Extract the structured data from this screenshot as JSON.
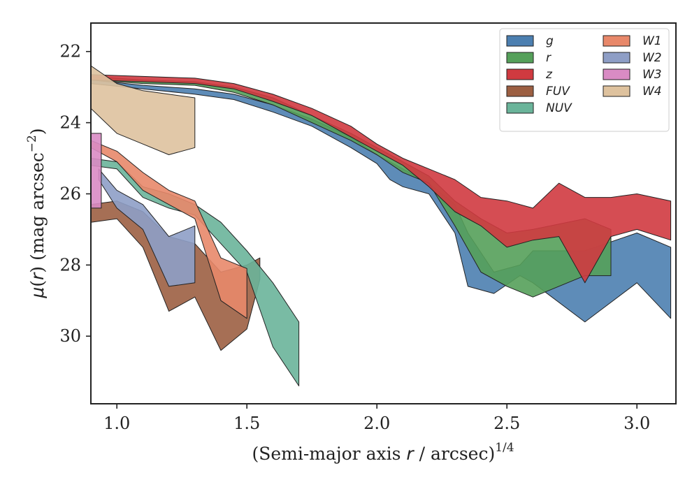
{
  "chart_data": {
    "type": "area",
    "xlabel": "(Semi-major axis r / arcsec)^1/4",
    "ylabel": "μ(r) (mag arcsec^−2)",
    "xlim": [
      0.9,
      3.15
    ],
    "ylim": [
      31.9,
      21.2
    ],
    "y_inverted": true,
    "grid": false,
    "legend_placement": "top-right",
    "xticks": [
      "1.0",
      "1.5",
      "2.0",
      "2.5",
      "3.0"
    ],
    "xtick_values": [
      1.0,
      1.5,
      2.0,
      2.5,
      3.0
    ],
    "yticks": [
      "22",
      "24",
      "26",
      "28",
      "30"
    ],
    "ytick_values": [
      22,
      24,
      26,
      28,
      30
    ],
    "series": [
      {
        "name": "g",
        "color": "#4C7FB0",
        "upper": [
          [
            0.9,
            22.8
          ],
          [
            1.1,
            22.95
          ],
          [
            1.3,
            23.05
          ],
          [
            1.45,
            23.2
          ],
          [
            1.6,
            23.5
          ],
          [
            1.75,
            23.9
          ],
          [
            1.9,
            24.4
          ],
          [
            2.0,
            24.9
          ],
          [
            2.05,
            25.1
          ],
          [
            2.1,
            25.3
          ],
          [
            2.2,
            25.7
          ],
          [
            2.3,
            26.3
          ],
          [
            2.35,
            27.1
          ],
          [
            2.45,
            28.2
          ],
          [
            2.55,
            28.0
          ],
          [
            2.6,
            27.6
          ],
          [
            2.8,
            27.6
          ],
          [
            3.0,
            27.1
          ],
          [
            3.13,
            27.5
          ]
        ],
        "lower": [
          [
            0.9,
            22.9
          ],
          [
            1.1,
            23.05
          ],
          [
            1.3,
            23.2
          ],
          [
            1.45,
            23.35
          ],
          [
            1.6,
            23.7
          ],
          [
            1.75,
            24.1
          ],
          [
            1.9,
            24.7
          ],
          [
            2.0,
            25.15
          ],
          [
            2.05,
            25.6
          ],
          [
            2.1,
            25.8
          ],
          [
            2.2,
            26.0
          ],
          [
            2.3,
            27.1
          ],
          [
            2.35,
            28.6
          ],
          [
            2.45,
            28.8
          ],
          [
            2.55,
            28.3
          ],
          [
            2.6,
            28.5
          ],
          [
            2.8,
            29.6
          ],
          [
            3.0,
            28.5
          ],
          [
            3.13,
            29.5
          ]
        ]
      },
      {
        "name": "r",
        "color": "#55A05A",
        "upper": [
          [
            0.9,
            22.7
          ],
          [
            1.1,
            22.8
          ],
          [
            1.3,
            22.85
          ],
          [
            1.45,
            23.0
          ],
          [
            1.6,
            23.3
          ],
          [
            1.75,
            23.8
          ],
          [
            1.9,
            24.3
          ],
          [
            2.0,
            24.7
          ],
          [
            2.1,
            25.1
          ],
          [
            2.2,
            25.5
          ],
          [
            2.3,
            26.2
          ],
          [
            2.4,
            26.7
          ],
          [
            2.5,
            27.1
          ],
          [
            2.6,
            27.0
          ],
          [
            2.8,
            26.7
          ],
          [
            2.9,
            27.0
          ]
        ],
        "lower": [
          [
            0.9,
            22.8
          ],
          [
            1.1,
            22.9
          ],
          [
            1.3,
            22.95
          ],
          [
            1.45,
            23.15
          ],
          [
            1.6,
            23.5
          ],
          [
            1.75,
            24.0
          ],
          [
            1.9,
            24.5
          ],
          [
            2.0,
            24.9
          ],
          [
            2.1,
            25.4
          ],
          [
            2.2,
            25.7
          ],
          [
            2.3,
            26.9
          ],
          [
            2.4,
            28.2
          ],
          [
            2.5,
            28.6
          ],
          [
            2.6,
            28.9
          ],
          [
            2.8,
            28.3
          ],
          [
            2.9,
            28.3
          ]
        ]
      },
      {
        "name": "z",
        "color": "#D03A40",
        "upper": [
          [
            0.9,
            22.65
          ],
          [
            1.1,
            22.7
          ],
          [
            1.3,
            22.75
          ],
          [
            1.45,
            22.9
          ],
          [
            1.6,
            23.2
          ],
          [
            1.75,
            23.6
          ],
          [
            1.9,
            24.1
          ],
          [
            2.0,
            24.6
          ],
          [
            2.1,
            25.0
          ],
          [
            2.2,
            25.3
          ],
          [
            2.3,
            25.6
          ],
          [
            2.4,
            26.1
          ],
          [
            2.5,
            26.2
          ],
          [
            2.6,
            26.4
          ],
          [
            2.7,
            25.7
          ],
          [
            2.8,
            26.1
          ],
          [
            2.9,
            26.1
          ],
          [
            3.0,
            26.0
          ],
          [
            3.13,
            26.2
          ]
        ],
        "lower": [
          [
            0.9,
            22.8
          ],
          [
            1.1,
            22.85
          ],
          [
            1.3,
            22.9
          ],
          [
            1.45,
            23.05
          ],
          [
            1.6,
            23.4
          ],
          [
            1.75,
            23.8
          ],
          [
            1.9,
            24.4
          ],
          [
            2.0,
            24.8
          ],
          [
            2.1,
            25.2
          ],
          [
            2.2,
            25.8
          ],
          [
            2.3,
            26.5
          ],
          [
            2.4,
            26.9
          ],
          [
            2.5,
            27.5
          ],
          [
            2.6,
            27.3
          ],
          [
            2.7,
            27.2
          ],
          [
            2.8,
            28.5
          ],
          [
            2.9,
            27.2
          ],
          [
            3.0,
            27.0
          ],
          [
            3.13,
            27.3
          ]
        ]
      },
      {
        "name": "FUV",
        "color": "#9C5F42",
        "upper": [
          [
            0.9,
            26.3
          ],
          [
            1.0,
            26.2
          ],
          [
            1.1,
            26.5
          ],
          [
            1.2,
            27.2
          ],
          [
            1.3,
            27.4
          ],
          [
            1.4,
            28.2
          ],
          [
            1.5,
            28.0
          ],
          [
            1.55,
            27.8
          ]
        ],
        "lower": [
          [
            0.9,
            26.8
          ],
          [
            1.0,
            26.7
          ],
          [
            1.1,
            27.5
          ],
          [
            1.2,
            29.3
          ],
          [
            1.3,
            28.9
          ],
          [
            1.4,
            30.4
          ],
          [
            1.5,
            29.8
          ],
          [
            1.55,
            28.4
          ]
        ]
      },
      {
        "name": "NUV",
        "color": "#6AB49A",
        "upper": [
          [
            0.9,
            25.0
          ],
          [
            1.0,
            25.1
          ],
          [
            1.1,
            25.8
          ],
          [
            1.2,
            26.0
          ],
          [
            1.3,
            26.3
          ],
          [
            1.4,
            26.8
          ],
          [
            1.5,
            27.6
          ],
          [
            1.6,
            28.5
          ],
          [
            1.7,
            29.6
          ]
        ],
        "lower": [
          [
            0.9,
            25.2
          ],
          [
            1.0,
            25.3
          ],
          [
            1.1,
            26.1
          ],
          [
            1.2,
            26.4
          ],
          [
            1.3,
            26.6
          ],
          [
            1.4,
            27.4
          ],
          [
            1.5,
            28.2
          ],
          [
            1.6,
            30.3
          ],
          [
            1.7,
            31.4
          ]
        ]
      },
      {
        "name": "W1",
        "color": "#E8886A",
        "upper": [
          [
            0.9,
            24.5
          ],
          [
            1.0,
            24.8
          ],
          [
            1.1,
            25.4
          ],
          [
            1.2,
            25.9
          ],
          [
            1.3,
            26.2
          ],
          [
            1.4,
            27.8
          ],
          [
            1.5,
            28.1
          ]
        ],
        "lower": [
          [
            0.9,
            24.7
          ],
          [
            1.0,
            25.1
          ],
          [
            1.1,
            25.9
          ],
          [
            1.2,
            26.3
          ],
          [
            1.3,
            26.7
          ],
          [
            1.4,
            29.0
          ],
          [
            1.5,
            29.5
          ]
        ]
      },
      {
        "name": "W2",
        "color": "#8E9EC6",
        "upper": [
          [
            0.93,
            25.3
          ],
          [
            1.0,
            25.9
          ],
          [
            1.1,
            26.3
          ],
          [
            1.2,
            27.2
          ],
          [
            1.3,
            26.9
          ]
        ],
        "lower": [
          [
            0.93,
            25.6
          ],
          [
            1.0,
            26.4
          ],
          [
            1.1,
            27.0
          ],
          [
            1.2,
            28.6
          ],
          [
            1.3,
            28.5
          ]
        ]
      },
      {
        "name": "W3",
        "color": "#D98BC4",
        "upper": [
          [
            0.9,
            24.3
          ],
          [
            0.94,
            24.3
          ]
        ],
        "lower": [
          [
            0.9,
            26.4
          ],
          [
            0.94,
            26.4
          ]
        ]
      },
      {
        "name": "W4",
        "color": "#DEC29E",
        "upper": [
          [
            0.9,
            22.4
          ],
          [
            1.0,
            22.9
          ],
          [
            1.1,
            23.1
          ],
          [
            1.2,
            23.2
          ],
          [
            1.3,
            23.3
          ]
        ],
        "lower": [
          [
            0.9,
            23.6
          ],
          [
            1.0,
            24.3
          ],
          [
            1.1,
            24.6
          ],
          [
            1.2,
            24.9
          ],
          [
            1.3,
            24.7
          ]
        ]
      }
    ]
  }
}
